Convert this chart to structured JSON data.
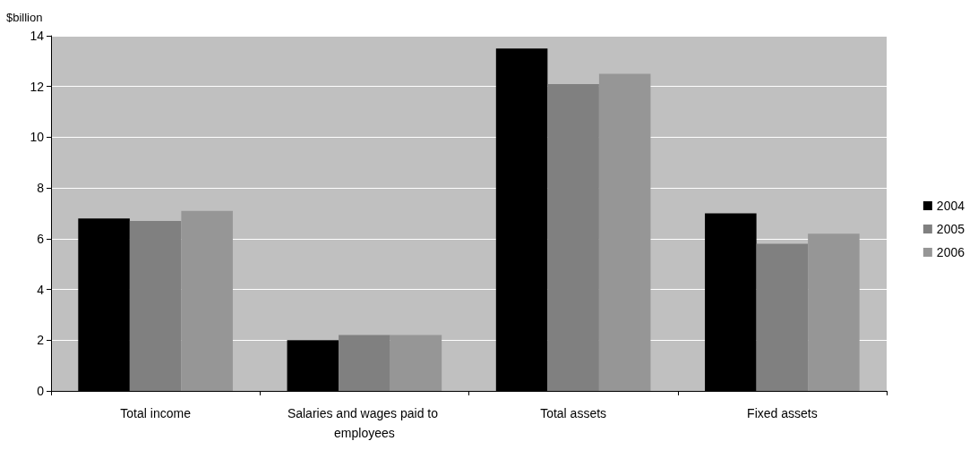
{
  "chart_data": {
    "type": "bar",
    "ylabel": "$billion",
    "categories": [
      "Total income",
      "Salaries and wages paid to employees",
      "Total assets",
      "Fixed assets"
    ],
    "series": [
      {
        "name": "2004",
        "color": "#000000",
        "values": [
          6.8,
          2.0,
          13.5,
          7.0
        ]
      },
      {
        "name": "2005",
        "color": "#808080",
        "values": [
          6.7,
          2.2,
          12.1,
          5.8
        ]
      },
      {
        "name": "2006",
        "color": "#969696",
        "values": [
          7.1,
          2.2,
          12.5,
          6.2
        ]
      }
    ],
    "ylim": [
      0,
      14
    ],
    "yticks": [
      0,
      2,
      4,
      6,
      8,
      10,
      12,
      14
    ],
    "grid": "y",
    "legend": "right"
  }
}
